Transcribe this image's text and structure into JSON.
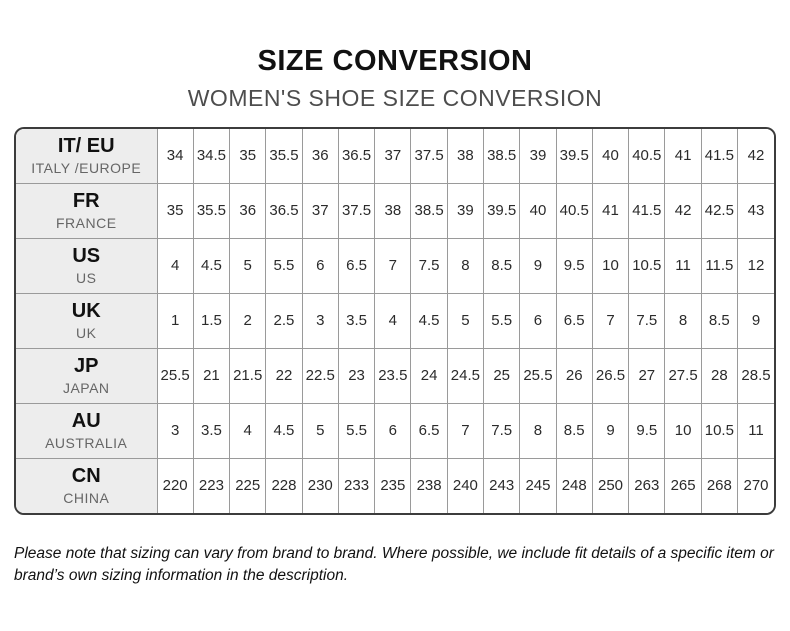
{
  "header": {
    "title": "SIZE CONVERSION",
    "subtitle": "WOMEN'S SHOE SIZE CONVERSION"
  },
  "table": {
    "name": "womens-shoe-size-conversion",
    "columns_count": 17,
    "rows": [
      {
        "code": "IT/ EU",
        "region": "ITALY /EUROPE",
        "values": [
          "34",
          "34.5",
          "35",
          "35.5",
          "36",
          "36.5",
          "37",
          "37.5",
          "38",
          "38.5",
          "39",
          "39.5",
          "40",
          "40.5",
          "41",
          "41.5",
          "42"
        ]
      },
      {
        "code": "FR",
        "region": "FRANCE",
        "values": [
          "35",
          "35.5",
          "36",
          "36.5",
          "37",
          "37.5",
          "38",
          "38.5",
          "39",
          "39.5",
          "40",
          "40.5",
          "41",
          "41.5",
          "42",
          "42.5",
          "43"
        ]
      },
      {
        "code": "US",
        "region": "US",
        "values": [
          "4",
          "4.5",
          "5",
          "5.5",
          "6",
          "6.5",
          "7",
          "7.5",
          "8",
          "8.5",
          "9",
          "9.5",
          "10",
          "10.5",
          "11",
          "11.5",
          "12"
        ]
      },
      {
        "code": "UK",
        "region": "UK",
        "values": [
          "1",
          "1.5",
          "2",
          "2.5",
          "3",
          "3.5",
          "4",
          "4.5",
          "5",
          "5.5",
          "6",
          "6.5",
          "7",
          "7.5",
          "8",
          "8.5",
          "9"
        ]
      },
      {
        "code": "JP",
        "region": "JAPAN",
        "values": [
          "25.5",
          "21",
          "21.5",
          "22",
          "22.5",
          "23",
          "23.5",
          "24",
          "24.5",
          "25",
          "25.5",
          "26",
          "26.5",
          "27",
          "27.5",
          "28",
          "28.5"
        ]
      },
      {
        "code": "AU",
        "region": "AUSTRALIA",
        "values": [
          "3",
          "3.5",
          "4",
          "4.5",
          "5",
          "5.5",
          "6",
          "6.5",
          "7",
          "7.5",
          "8",
          "8.5",
          "9",
          "9.5",
          "10",
          "10.5",
          "11"
        ]
      },
      {
        "code": "CN",
        "region": "CHINA",
        "values": [
          "220",
          "223",
          "225",
          "228",
          "230",
          "233",
          "235",
          "238",
          "240",
          "243",
          "245",
          "248",
          "250",
          "263",
          "265",
          "268",
          "270"
        ]
      }
    ]
  },
  "footer": {
    "note": "Please note that sizing can vary from brand to brand. Where possible, we include fit details of a specific item or brand’s own sizing information in the description."
  },
  "colors": {
    "title_text": "#111111",
    "subtitle_text": "#4d4d4d",
    "header_cell_bg": "#ededed",
    "outer_border": "#3c3c3c",
    "inner_border": "#9a9a9a",
    "cell_text": "#2b2b2b"
  }
}
